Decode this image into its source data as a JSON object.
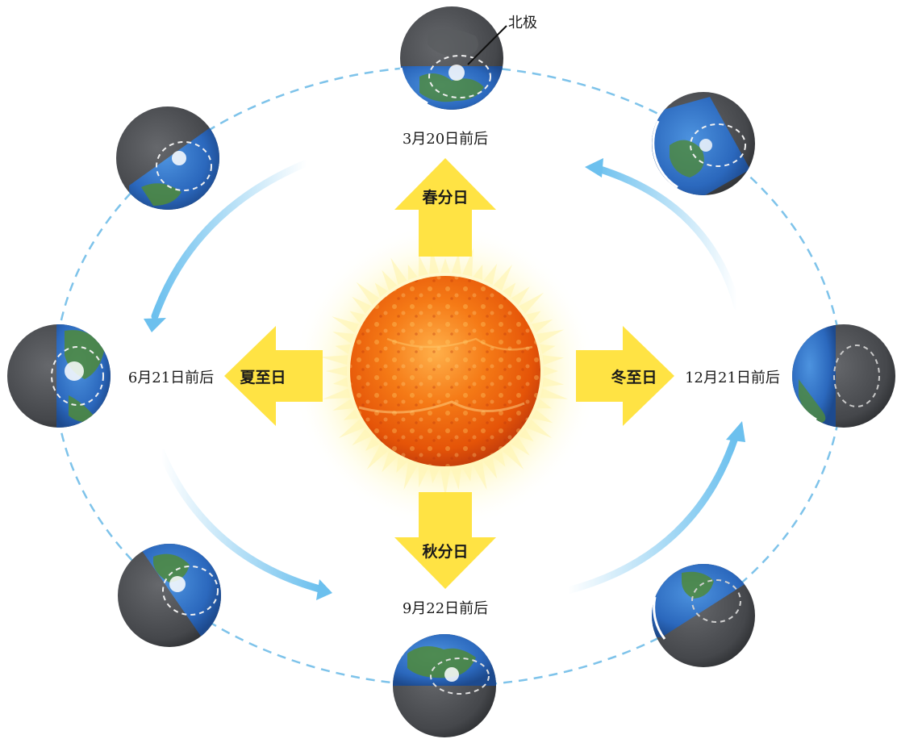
{
  "labels": {
    "north_pole": "北极",
    "spring_equinox": "春分日",
    "summer_solstice": "夏至日",
    "autumn_equinox": "秋分日",
    "winter_solstice": "冬至日",
    "date_spring": "3月20日前后",
    "date_summer": "6月21日前后",
    "date_autumn": "9月22日前后",
    "date_winter": "12月21日前后"
  },
  "colors": {
    "orbit": "#7ec3ea",
    "motion_arrow": "#6cc0ee",
    "sun_inner": "#f26a10",
    "sun_outer": "#e84a0a",
    "corona": "#fff3a0",
    "direction_arrow": "#ffe23a",
    "ocean": "#2e6fc4",
    "land": "#4f8a3a",
    "night": "#4a4c50",
    "arctic_circle": "#f0f0f0"
  },
  "icons": [
    "sun-icon",
    "earth-icon",
    "direction-arrow-icon",
    "orbit-direction-arrow-icon"
  ]
}
